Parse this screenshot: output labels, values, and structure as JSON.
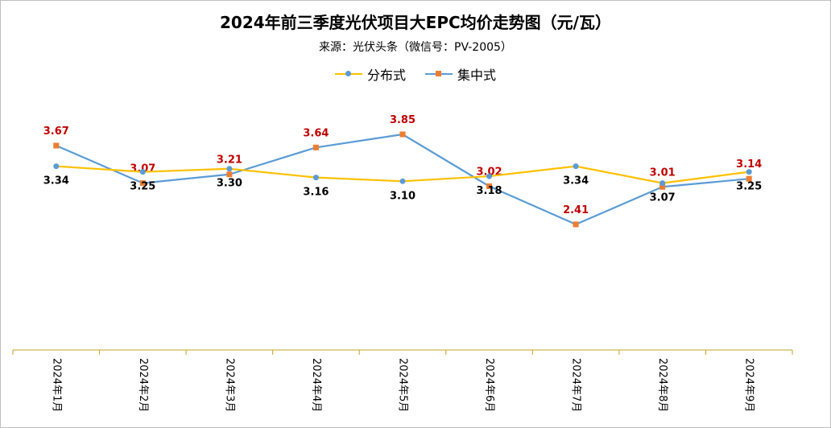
{
  "title": "2024年前三季度光伏项目大EPC均价走势图（元/瓦）",
  "subtitle": "来源：光伏头条（微信号：PV-2005）",
  "colors": {
    "distributed": "#FFC000",
    "distributed_marker": "#5B9BD5",
    "centralized": "#5B9BD5",
    "centralized_marker": "#ED7D31",
    "centralized_label": "#C00000",
    "distributed_label": "#000000",
    "axis": "#C9A227"
  },
  "chart_data": {
    "type": "line",
    "categories": [
      "2024年1月",
      "2024年2月",
      "2024年3月",
      "2024年4月",
      "2024年5月",
      "2024年6月",
      "2024年7月",
      "2024年8月",
      "2024年9月"
    ],
    "series": [
      {
        "name": "分布式",
        "values": [
          3.34,
          3.25,
          3.3,
          3.16,
          3.1,
          3.18,
          3.34,
          3.07,
          3.25
        ]
      },
      {
        "name": "集中式",
        "values": [
          3.67,
          3.07,
          3.21,
          3.64,
          3.85,
          3.02,
          2.41,
          3.01,
          3.14
        ]
      }
    ],
    "grid": false,
    "legend_position": "top"
  }
}
